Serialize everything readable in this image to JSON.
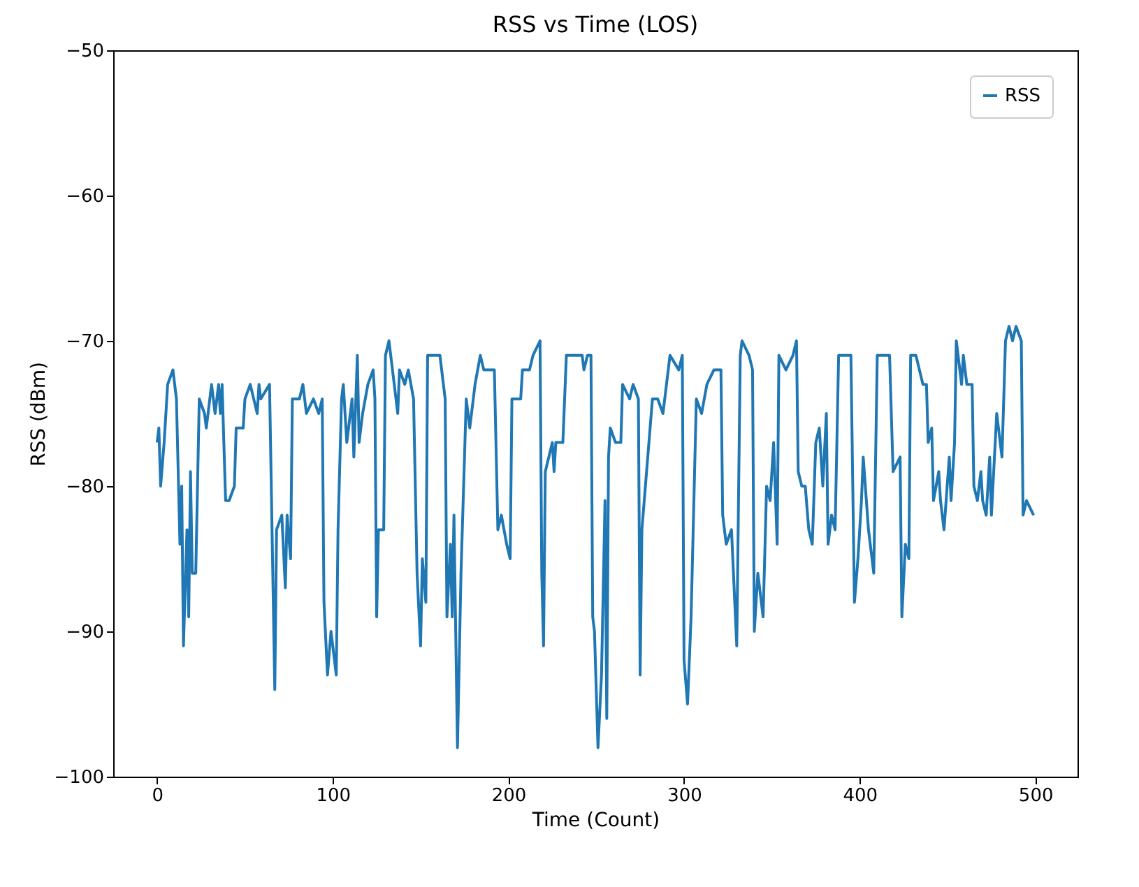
{
  "chart_data": {
    "type": "line",
    "title": "RSS vs Time (LOS)",
    "xlabel": "Time (Count)",
    "ylabel": "RSS (dBm)",
    "x": [
      0,
      1,
      2,
      4,
      6,
      9,
      11,
      13,
      14,
      15,
      17,
      18,
      19,
      20,
      22,
      24,
      27,
      28,
      31,
      33,
      35,
      36,
      37,
      39,
      41,
      44,
      45,
      49,
      50,
      53,
      57,
      58,
      59,
      64,
      67,
      68,
      71,
      73,
      74,
      76,
      77,
      81,
      83,
      85,
      89,
      92,
      94,
      95,
      97,
      99,
      102,
      103,
      105,
      106,
      108,
      111,
      112,
      114,
      115,
      117,
      120,
      123,
      124,
      125,
      126,
      129,
      130,
      132,
      134,
      137,
      138,
      141,
      143,
      146,
      148,
      150,
      151,
      153,
      154,
      161,
      164,
      165,
      167,
      168,
      169,
      171,
      173,
      176,
      178,
      181,
      184,
      186,
      192,
      194,
      196,
      199,
      201,
      202,
      207,
      208,
      212,
      214,
      218,
      219,
      220,
      221,
      225,
      226,
      227,
      231,
      233,
      242,
      243,
      245,
      247,
      248,
      249,
      251,
      253,
      255,
      256,
      257,
      258,
      261,
      264,
      265,
      269,
      271,
      274,
      275,
      276,
      278,
      282,
      285,
      288,
      292,
      297,
      299,
      300,
      302,
      304,
      307,
      310,
      313,
      317,
      321,
      322,
      324,
      327,
      330,
      332,
      333,
      337,
      339,
      340,
      342,
      345,
      347,
      349,
      351,
      353,
      354,
      358,
      362,
      364,
      365,
      367,
      369,
      371,
      373,
      375,
      377,
      379,
      381,
      382,
      384,
      386,
      388,
      395,
      397,
      399,
      401,
      402,
      405,
      408,
      410,
      417,
      419,
      423,
      424,
      426,
      428,
      429,
      432,
      434,
      436,
      438,
      439,
      441,
      442,
      445,
      446,
      448,
      451,
      452,
      454,
      455,
      458,
      459,
      461,
      464,
      465,
      467,
      469,
      470,
      472,
      474,
      475,
      478,
      481,
      483,
      485,
      487,
      489,
      492,
      493,
      495,
      499
    ],
    "series": [
      {
        "name": "RSS",
        "color": "#1f77b4",
        "values": [
          -77,
          -76,
          -80,
          -77,
          -73,
          -72,
          -74,
          -84,
          -80,
          -91,
          -83,
          -89,
          -79,
          -86,
          -86,
          -74,
          -75,
          -76,
          -73,
          -75,
          -73,
          -75,
          -73,
          -81,
          -81,
          -80,
          -76,
          -76,
          -74,
          -73,
          -75,
          -73,
          -74,
          -73,
          -94,
          -83,
          -82,
          -87,
          -82,
          -85,
          -74,
          -74,
          -73,
          -75,
          -74,
          -75,
          -74,
          -88,
          -93,
          -90,
          -93,
          -83,
          -74,
          -73,
          -77,
          -74,
          -78,
          -71,
          -77,
          -75,
          -73,
          -72,
          -74,
          -89,
          -83,
          -83,
          -71,
          -70,
          -72,
          -75,
          -72,
          -73,
          -72,
          -74,
          -86,
          -91,
          -85,
          -88,
          -71,
          -71,
          -74,
          -89,
          -84,
          -89,
          -82,
          -98,
          -86,
          -74,
          -76,
          -73,
          -71,
          -72,
          -72,
          -83,
          -82,
          -84,
          -85,
          -74,
          -74,
          -72,
          -72,
          -71,
          -70,
          -86,
          -91,
          -79,
          -77,
          -79,
          -77,
          -77,
          -71,
          -71,
          -72,
          -71,
          -71,
          -89,
          -90,
          -98,
          -93,
          -81,
          -96,
          -78,
          -76,
          -77,
          -77,
          -73,
          -74,
          -73,
          -74,
          -93,
          -83,
          -80,
          -74,
          -74,
          -75,
          -71,
          -72,
          -71,
          -92,
          -95,
          -89,
          -74,
          -75,
          -73,
          -72,
          -72,
          -82,
          -84,
          -83,
          -91,
          -71,
          -70,
          -71,
          -72,
          -90,
          -86,
          -89,
          -80,
          -81,
          -77,
          -84,
          -71,
          -72,
          -71,
          -70,
          -79,
          -80,
          -80,
          -83,
          -84,
          -77,
          -76,
          -80,
          -75,
          -84,
          -82,
          -83,
          -71,
          -71,
          -88,
          -85,
          -81,
          -78,
          -83,
          -86,
          -71,
          -71,
          -79,
          -78,
          -89,
          -84,
          -85,
          -71,
          -71,
          -72,
          -73,
          -73,
          -77,
          -76,
          -81,
          -79,
          -81,
          -83,
          -78,
          -81,
          -77,
          -70,
          -73,
          -71,
          -73,
          -73,
          -80,
          -81,
          -79,
          -81,
          -82,
          -78,
          -82,
          -75,
          -78,
          -70,
          -69,
          -70,
          -69,
          -70,
          -82,
          -81,
          -82
        ]
      }
    ],
    "xlim": [
      -25,
      524
    ],
    "xticks": [
      0,
      100,
      200,
      300,
      400,
      500
    ],
    "ylim": [
      -100,
      -50
    ],
    "yticks": [
      -100,
      -90,
      -80,
      -70,
      -60,
      -50
    ],
    "grid": false,
    "legend": "top right"
  }
}
